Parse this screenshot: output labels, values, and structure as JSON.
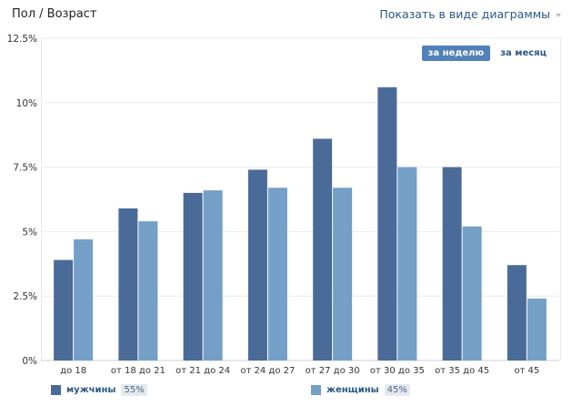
{
  "header": {
    "title": "Пол / Возраст",
    "view_toggle_label": "Показать в виде диаграммы"
  },
  "period": {
    "week_label": "за неделю",
    "month_label": "за месяц"
  },
  "legend": {
    "men_label": "мужчины",
    "men_pct": "55%",
    "women_label": "женщины",
    "women_pct": "45%"
  },
  "colors": {
    "men": "#4a6b98",
    "women": "#749fc7",
    "grid": "#e7ebf0",
    "axis_text": "#333333"
  },
  "chart_data": {
    "type": "bar",
    "categories": [
      "до 18",
      "от 18 до 21",
      "от 21 до 24",
      "от 24 до 27",
      "от 27 до 30",
      "от 30 до 35",
      "от 35 до 45",
      "от 45"
    ],
    "series": [
      {
        "name": "мужчины",
        "values": [
          3.9,
          5.9,
          6.5,
          7.4,
          8.6,
          10.6,
          7.5,
          3.7
        ]
      },
      {
        "name": "женщины",
        "values": [
          4.7,
          5.4,
          6.6,
          6.7,
          6.7,
          7.5,
          5.2,
          2.4
        ]
      }
    ],
    "yticks": [
      "0%",
      "2.5%",
      "5%",
      "7.5%",
      "10%",
      "12.5%"
    ],
    "ylim": [
      0,
      12.5
    ],
    "grid": true
  }
}
